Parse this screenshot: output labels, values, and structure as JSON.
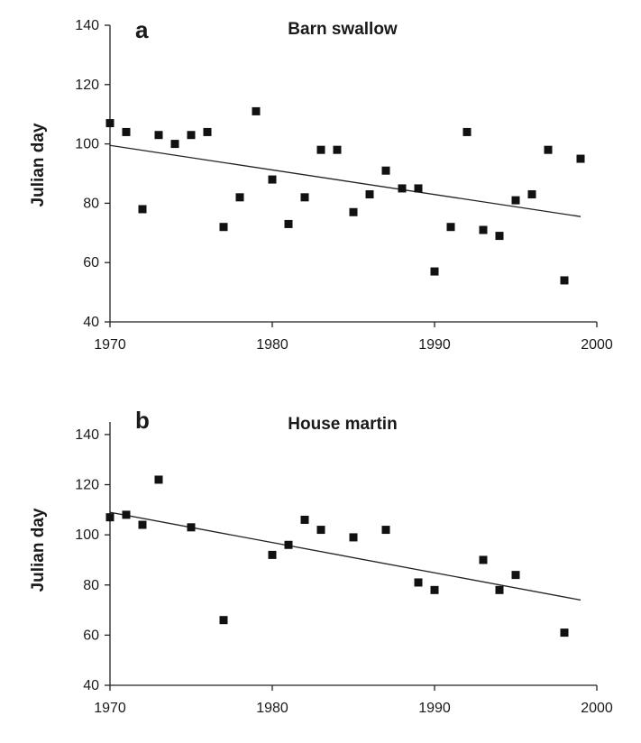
{
  "chart_data": [
    {
      "type": "scatter",
      "panel_label": "a",
      "title": "Barn swallow",
      "xlabel": "",
      "ylabel": "Julian day",
      "xlim": [
        1970,
        2000
      ],
      "ylim": [
        40,
        140
      ],
      "xticks": [
        1970,
        1980,
        1990,
        2000
      ],
      "yticks": [
        40,
        60,
        80,
        100,
        120,
        140
      ],
      "grid": false,
      "series": [
        {
          "x": [
            1970,
            1971,
            1972,
            1973,
            1974,
            1975,
            1976,
            1977,
            1978,
            1979,
            1980,
            1981,
            1982,
            1983,
            1984,
            1985,
            1986,
            1987,
            1988,
            1989,
            1990,
            1991,
            1992,
            1993,
            1994,
            1995,
            1996,
            1997,
            1998,
            1999
          ],
          "y": [
            107,
            104,
            78,
            103,
            100,
            103,
            104,
            72,
            82,
            111,
            88,
            73,
            82,
            98,
            98,
            77,
            83,
            91,
            85,
            85,
            57,
            72,
            104,
            71,
            69,
            81,
            83,
            98,
            54,
            95
          ]
        }
      ],
      "trendline": {
        "x": [
          1970,
          1999
        ],
        "y": [
          99.5,
          75.5
        ]
      }
    },
    {
      "type": "scatter",
      "panel_label": "b",
      "title": "House martin",
      "xlabel": "",
      "ylabel": "Julian day",
      "xlim": [
        1970,
        2000
      ],
      "ylim": [
        40,
        145
      ],
      "xticks": [
        1970,
        1980,
        1990,
        2000
      ],
      "yticks": [
        40,
        60,
        80,
        100,
        120,
        140
      ],
      "grid": false,
      "series": [
        {
          "x": [
            1970,
            1971,
            1972,
            1973,
            1975,
            1977,
            1980,
            1981,
            1982,
            1983,
            1985,
            1987,
            1989,
            1990,
            1993,
            1994,
            1995,
            1998
          ],
          "y": [
            107,
            108,
            104,
            122,
            103,
            66,
            92,
            96,
            106,
            102,
            99,
            102,
            81,
            78,
            90,
            78,
            84,
            61
          ]
        }
      ],
      "trendline": {
        "x": [
          1970,
          1999
        ],
        "y": [
          109,
          74
        ]
      }
    }
  ]
}
